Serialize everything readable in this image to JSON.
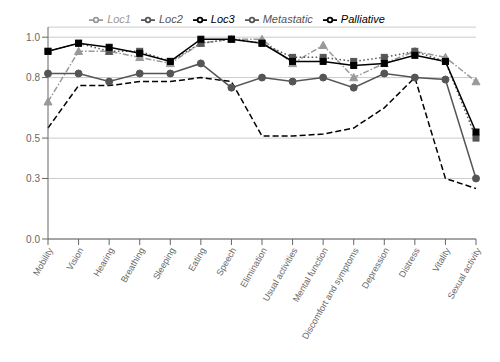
{
  "chart_data": {
    "type": "line",
    "categories": [
      "Mobility",
      "Vision",
      "Hearing",
      "Breathing",
      "Sleeping",
      "Eating",
      "Speech",
      "Elimination",
      "Usual activities",
      "Mental function",
      "Discomfort and symptoms",
      "Depression",
      "Distress",
      "Vitality",
      "Sexual activity"
    ],
    "series": [
      {
        "name": "Loc1",
        "color": "#999999",
        "line_style": "dashdot",
        "marker": "triangle",
        "values": [
          0.68,
          0.93,
          0.93,
          0.9,
          0.87,
          0.97,
          0.99,
          0.99,
          0.87,
          0.96,
          0.8,
          0.87,
          0.93,
          0.9,
          0.78
        ]
      },
      {
        "name": "Loc2",
        "color": "#555555",
        "line_style": "dotted",
        "marker": "square",
        "values": [
          0.93,
          0.97,
          0.93,
          0.93,
          0.88,
          0.97,
          0.99,
          0.97,
          0.9,
          0.9,
          0.88,
          0.9,
          0.93,
          0.88,
          0.5
        ]
      },
      {
        "name": "Loc3",
        "color": "#000000",
        "line_style": "solid",
        "marker": "square",
        "values": [
          0.93,
          0.97,
          0.95,
          0.92,
          0.88,
          0.99,
          0.99,
          0.97,
          0.88,
          0.88,
          0.86,
          0.87,
          0.91,
          0.88,
          0.53
        ]
      },
      {
        "name": "Metastatic",
        "color": "#555555",
        "line_style": "solid",
        "marker": "circle",
        "values": [
          0.82,
          0.82,
          0.78,
          0.82,
          0.82,
          0.87,
          0.75,
          0.8,
          0.78,
          0.8,
          0.75,
          0.82,
          0.8,
          0.79,
          0.3
        ]
      },
      {
        "name": "Palliative",
        "color": "#000000",
        "line_style": "dashed",
        "marker": "none",
        "values": [
          0.55,
          0.76,
          0.76,
          0.78,
          0.78,
          0.8,
          0.78,
          0.51,
          0.51,
          0.52,
          0.55,
          0.65,
          0.8,
          0.3,
          0.25
        ]
      }
    ],
    "ylim": [
      0.0,
      1.05
    ],
    "yticks": [
      {
        "value": 0,
        "label": "0.0"
      },
      0.3,
      0.5,
      0.8,
      {
        "value": 1,
        "label": "1.0"
      }
    ],
    "grid": true,
    "legend": "top"
  }
}
